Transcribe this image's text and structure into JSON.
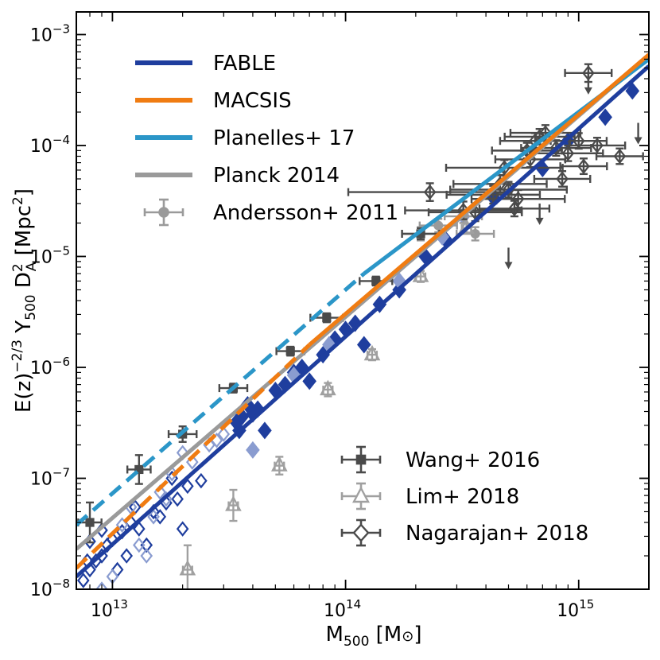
{
  "chart_data": {
    "type": "scatter",
    "xlabel": "M500 [M⊙]",
    "ylabel": "E(z)−2/3 Y500 D2A [Mpc2]",
    "xscale": "log",
    "yscale": "log",
    "xlim": [
      7000000000000.0,
      2000000000000000.0
    ],
    "ylim": [
      1e-08,
      0.0016
    ],
    "x_ticks": [
      {
        "value": 10000000000000.0,
        "base": "10",
        "exp": "13"
      },
      {
        "value": 100000000000000.0,
        "base": "10",
        "exp": "14"
      },
      {
        "value": 1000000000000000.0,
        "base": "10",
        "exp": "15"
      }
    ],
    "y_ticks": [
      {
        "value": 1e-08,
        "base": "10",
        "exp": "−8"
      },
      {
        "value": 1e-07,
        "base": "10",
        "exp": "−7"
      },
      {
        "value": 1e-06,
        "base": "10",
        "exp": "−6"
      },
      {
        "value": 1e-05,
        "base": "10",
        "exp": "−5"
      },
      {
        "value": 0.0001,
        "base": "10",
        "exp": "−4"
      },
      {
        "value": 0.001,
        "base": "10",
        "exp": "−3"
      }
    ],
    "legend_top_left": [
      {
        "label": "FABLE",
        "color": "#1f3e9e",
        "kind": "line"
      },
      {
        "label": "MACSIS",
        "color": "#f07c12",
        "kind": "line"
      },
      {
        "label": "Planelles+ 17",
        "color": "#2b96c8",
        "kind": "line"
      },
      {
        "label": "Planck 2014",
        "color": "#9a9a9a",
        "kind": "line"
      },
      {
        "label": "Andersson+ 2011",
        "color": "#9a9a9a",
        "kind": "errpoint-circle"
      }
    ],
    "legend_bottom_right": [
      {
        "label": "Wang+ 2016",
        "color": "#4a4a4a",
        "kind": "errpoint-square"
      },
      {
        "label": "Lim+ 2018",
        "color": "#a0a0a0",
        "kind": "errpoint-triangle"
      },
      {
        "label": "Nagarajan+ 2018",
        "color": "#4a4a4a",
        "kind": "errpoint-diamond"
      }
    ],
    "series": [
      {
        "name": "Planck 2014",
        "kind": "line",
        "color": "#9a9a9a",
        "dash": "solid",
        "x": [
          7000000000000.0,
          2000000000000000.0
        ],
        "y": [
          2.3e-08,
          0.00065
        ]
      },
      {
        "name": "Planelles+ 17",
        "kind": "line",
        "color": "#2b96c8",
        "dash": "solid",
        "x": [
          120000000000000.0,
          2000000000000000.0
        ],
        "y": [
          7e-06,
          0.0006
        ]
      },
      {
        "name": "Planelles+ 17 (extrapolated)",
        "kind": "line",
        "color": "#2b96c8",
        "dash": "dashed",
        "x": [
          7000000000000.0,
          120000000000000.0
        ],
        "y": [
          3.8e-08,
          7e-06
        ]
      },
      {
        "name": "MACSIS",
        "kind": "line",
        "color": "#f07c12",
        "dash": "solid",
        "x": [
          70000000000000.0,
          2000000000000000.0
        ],
        "y": [
          1.6e-06,
          0.00066
        ]
      },
      {
        "name": "MACSIS (extrapolated)",
        "kind": "line",
        "color": "#f07c12",
        "dash": "dashed",
        "x": [
          7000000000000.0,
          70000000000000.0
        ],
        "y": [
          1.55e-08,
          1.6e-06
        ]
      },
      {
        "name": "FABLE",
        "kind": "line",
        "color": "#1f3e9e",
        "dash": "solid",
        "x": [
          7000000000000.0,
          2000000000000000.0
        ],
        "y": [
          1.3e-08,
          0.00052
        ]
      },
      {
        "name": "FABLE clusters",
        "kind": "scatter",
        "marker": "diamond",
        "color": "#1f3e9e",
        "filled": true,
        "x": [
          34000000000000.0,
          36000000000000.0,
          38000000000000.0,
          40000000000000.0,
          42000000000000.0,
          45000000000000.0,
          35000000000000.0,
          50000000000000.0,
          55000000000000.0,
          60000000000000.0,
          65000000000000.0,
          70000000000000.0,
          80000000000000.0,
          90000000000000.0,
          100000000000000.0,
          110000000000000.0,
          120000000000000.0,
          140000000000000.0,
          170000000000000.0,
          220000000000000.0,
          270000000000000.0,
          430000000000000.0,
          700000000000000.0,
          1300000000000000.0,
          1700000000000000.0,
          900000000000000.0
        ],
        "y": [
          3.2e-07,
          3.6e-07,
          4.6e-07,
          3.8e-07,
          4.2e-07,
          2.7e-07,
          2.7e-07,
          6.2e-07,
          7e-07,
          9e-07,
          1e-06,
          7.5e-07,
          1.3e-06,
          1.8e-06,
          2.2e-06,
          2.5e-06,
          1.6e-06,
          3.7e-06,
          5e-06,
          1e-05,
          1.4e-05,
          3.4e-05,
          6.2e-05,
          0.00018,
          0.00031,
          0.00011
        ]
      },
      {
        "name": "FABLE groups (open)",
        "kind": "scatter",
        "marker": "diamond",
        "color": "#1f3e9e",
        "filled": false,
        "x": [
          7500000000000.0,
          8000000000000.0,
          8500000000000.0,
          9000000000000.0,
          9500000000000.0,
          10000000000000.0,
          11000000000000.0,
          12000000000000.0,
          13000000000000.0,
          15000000000000.0,
          17000000000000.0,
          19000000000000.0,
          21000000000000.0,
          24000000000000.0,
          8000000000000.0,
          9000000000000.0,
          10500000000000.0,
          12500000000000.0,
          14000000000000.0,
          16000000000000.0,
          18000000000000.0,
          20000000000000.0,
          7800000000000.0,
          11500000000000.0
        ],
        "y": [
          1.2e-08,
          1.5e-08,
          1.8e-08,
          2e-08,
          2.5e-08,
          2.8e-08,
          3.3e-08,
          4e-08,
          3.5e-08,
          5e-08,
          6e-08,
          6.5e-08,
          8.5e-08,
          9.5e-08,
          2.7e-08,
          3.4e-08,
          1.5e-08,
          5.5e-08,
          2.5e-08,
          4.5e-08,
          1e-07,
          3.5e-08,
          1.8e-08,
          2e-08
        ]
      },
      {
        "name": "FABLE light (open)",
        "kind": "scatter",
        "marker": "diamond",
        "color": "#8a9cd0",
        "filled": false,
        "x": [
          9000000000000.0,
          10000000000000.0,
          11000000000000.0,
          12000000000000.0,
          14000000000000.0,
          16000000000000.0,
          18000000000000.0,
          22000000000000.0,
          26000000000000.0,
          30000000000000.0,
          13000000000000.0,
          15000000000000.0,
          20000000000000.0,
          28000000000000.0,
          17000000000000.0
        ],
        "y": [
          1e-08,
          1.3e-08,
          3.8e-08,
          5.5e-08,
          2e-08,
          7.5e-08,
          1.1e-07,
          1.4e-07,
          2e-07,
          2.5e-07,
          2.5e-08,
          4.5e-08,
          1.7e-07,
          2.2e-07,
          6.5e-08
        ]
      },
      {
        "name": "FABLE light (filled)",
        "kind": "scatter",
        "marker": "diamond",
        "color": "#8a9cd0",
        "filled": true,
        "x": [
          40000000000000.0,
          60000000000000.0,
          85000000000000.0,
          170000000000000.0,
          260000000000000.0,
          320000000000000.0
        ],
        "y": [
          1.8e-07,
          8.5e-07,
          1.6e-06,
          6e-06,
          1.5e-05,
          2.3e-05
        ]
      },
      {
        "name": "Andersson+ 2011",
        "kind": "scatter",
        "marker": "circle",
        "color": "#9a9a9a",
        "filled": true,
        "x": [
          210000000000000.0,
          250000000000000.0,
          320000000000000.0,
          360000000000000.0
        ],
        "y": [
          1.6e-05,
          1.9e-05,
          2.3e-05,
          1.6e-05
        ],
        "xerr": [
          0.08,
          0.08,
          0.08,
          0.08
        ],
        "yerr": [
          0.06,
          0.06,
          0.06,
          0.06
        ]
      },
      {
        "name": "Wang+ 2016",
        "kind": "scatter",
        "marker": "square",
        "color": "#4a4a4a",
        "filled": true,
        "x": [
          8000000000000.0,
          13000000000000.0,
          20000000000000.0,
          33000000000000.0,
          58000000000000.0,
          83000000000000.0,
          135000000000000.0,
          210000000000000.0
        ],
        "y": [
          4e-08,
          1.2e-07,
          2.5e-07,
          6.5e-07,
          1.4e-06,
          2.8e-06,
          6e-06,
          1.6e-05
        ],
        "xerr": [
          0.05,
          0.05,
          0.06,
          0.06,
          0.06,
          0.07,
          0.07,
          0.08
        ],
        "yerr": [
          0.18,
          0.13,
          0.07,
          0.04,
          0.04,
          0.04,
          0.04,
          0.05
        ]
      },
      {
        "name": "Lim+ 2018",
        "kind": "scatter",
        "marker": "triangle",
        "color": "#a0a0a0",
        "filled": false,
        "x": [
          21000000000000.0,
          33000000000000.0,
          52000000000000.0,
          84000000000000.0,
          130000000000000.0,
          210000000000000.0,
          330000000000000.0
        ],
        "y": [
          1.5e-08,
          5.7e-08,
          1.3e-07,
          6.3e-07,
          1.3e-06,
          6.6e-06,
          1.8e-05
        ],
        "xerr": [
          0.02,
          0.02,
          0.02,
          0.02,
          0.02,
          0.02,
          0.02
        ],
        "yerr": [
          0.22,
          0.14,
          0.08,
          0.06,
          0.05,
          0.05,
          0.04
        ]
      },
      {
        "name": "Nagarajan+ 2018",
        "kind": "scatter",
        "marker": "diamond",
        "color": "#4a4a4a",
        "filled": false,
        "x": [
          230000000000000.0,
          320000000000000.0,
          360000000000000.0,
          430000000000000.0,
          480000000000000.0,
          550000000000000.0,
          600000000000000.0,
          650000000000000.0,
          720000000000000.0,
          800000000000000.0,
          900000000000000.0,
          1000000000000000.0,
          1100000000000000.0,
          1200000000000000.0,
          1500000000000000.0,
          500000000000000.0,
          620000000000000.0,
          530000000000000.0,
          850000000000000.0,
          1050000000000000.0,
          460000000000000.0,
          680000000000000.0
        ],
        "y": [
          3.8e-05,
          2.6e-05,
          2.5e-05,
          3.6e-05,
          6.3e-05,
          3.3e-05,
          9e-05,
          0.00011,
          0.00013,
          9.5e-05,
          8.5e-05,
          0.00011,
          0.00045,
          0.0001,
          8e-05,
          4e-05,
          7.5e-05,
          2.7e-05,
          5e-05,
          6.5e-05,
          4.5e-05,
          0.00012
        ],
        "xerr": [
          0.35,
          0.25,
          0.2,
          0.2,
          0.25,
          0.2,
          0.15,
          0.15,
          0.15,
          0.15,
          0.15,
          0.12,
          0.1,
          0.12,
          0.1,
          0.25,
          0.15,
          0.15,
          0.12,
          0.1,
          0.2,
          0.15
        ],
        "yerr": [
          0.08,
          0.08,
          0.08,
          0.08,
          0.07,
          0.08,
          0.07,
          0.07,
          0.07,
          0.07,
          0.07,
          0.07,
          0.08,
          0.07,
          0.07,
          0.07,
          0.07,
          0.07,
          0.07,
          0.07,
          0.08,
          0.07
        ],
        "upper_limits": [
          {
            "x": 1100000000000000.0,
            "y": 0.00045
          },
          {
            "x": 500000000000000.0,
            "y": 1.2e-05
          },
          {
            "x": 680000000000000.0,
            "y": 3e-05
          },
          {
            "x": 1800000000000000.0,
            "y": 0.00016
          }
        ]
      }
    ]
  }
}
